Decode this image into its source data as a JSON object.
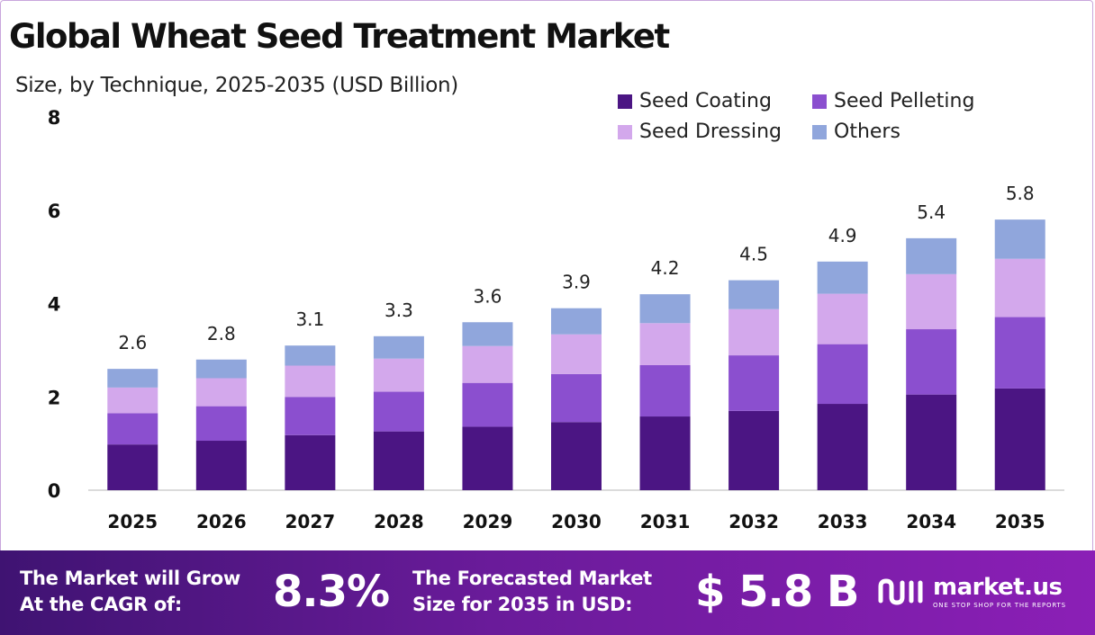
{
  "title": "Global Wheat Seed Treatment Market",
  "subtitle": "Size, by Technique, 2025-2035 (USD Billion)",
  "colors": {
    "seed_coating": "#4b1583",
    "seed_pelleting": "#8b4fcf",
    "seed_dressing": "#d3a8ec",
    "others": "#90a6dc",
    "footer_start": "#3f1372",
    "footer_end": "#8b1fb6"
  },
  "chart_data": {
    "type": "bar",
    "stacked": true,
    "categories": [
      "2025",
      "2026",
      "2027",
      "2028",
      "2029",
      "2030",
      "2031",
      "2032",
      "2033",
      "2034",
      "2035"
    ],
    "series": [
      {
        "name": "Seed Coating",
        "values": [
          0.98,
          1.06,
          1.18,
          1.26,
          1.36,
          1.46,
          1.58,
          1.7,
          1.85,
          2.05,
          2.18
        ]
      },
      {
        "name": "Seed Pelleting",
        "values": [
          0.67,
          0.74,
          0.82,
          0.85,
          0.94,
          1.03,
          1.1,
          1.19,
          1.28,
          1.4,
          1.53
        ]
      },
      {
        "name": "Seed Dressing",
        "values": [
          0.55,
          0.6,
          0.67,
          0.71,
          0.79,
          0.85,
          0.9,
          0.99,
          1.08,
          1.18,
          1.25
        ]
      },
      {
        "name": "Others",
        "values": [
          0.4,
          0.4,
          0.43,
          0.48,
          0.51,
          0.56,
          0.62,
          0.62,
          0.69,
          0.77,
          0.84
        ]
      }
    ],
    "totals": [
      2.6,
      2.8,
      3.1,
      3.3,
      3.6,
      3.9,
      4.2,
      4.5,
      4.9,
      5.4,
      5.8
    ],
    "total_labels": [
      "2.6",
      "2.8",
      "3.1",
      "3.3",
      "3.6",
      "3.9",
      "4.2",
      "4.5",
      "4.9",
      "5.4",
      "5.8"
    ],
    "ylim": [
      0,
      8
    ],
    "yticks": [
      0,
      2,
      4,
      6,
      8
    ],
    "ytick_labels": [
      "0",
      "2",
      "4",
      "6",
      "8"
    ],
    "grid": false,
    "legend_position": "top-right",
    "xlabel": "",
    "ylabel": ""
  },
  "legend": {
    "items": [
      {
        "label": "Seed Coating",
        "color_key": "seed_coating"
      },
      {
        "label": "Seed Pelleting",
        "color_key": "seed_pelleting"
      },
      {
        "label": "Seed Dressing",
        "color_key": "seed_dressing"
      },
      {
        "label": "Others",
        "color_key": "others"
      }
    ]
  },
  "footer": {
    "cagr_text_line1": "The Market will Grow",
    "cagr_text_line2": "At the CAGR of:",
    "cagr_value": "8.3%",
    "forecast_text_line1": "The Forecasted Market",
    "forecast_text_line2": "Size for 2035 in USD:",
    "forecast_value": "$ 5.8 B",
    "brand_name": "market.us",
    "brand_tagline": "ONE STOP SHOP FOR THE REPORTS",
    "brand_icon": "market-us-logo-icon"
  }
}
